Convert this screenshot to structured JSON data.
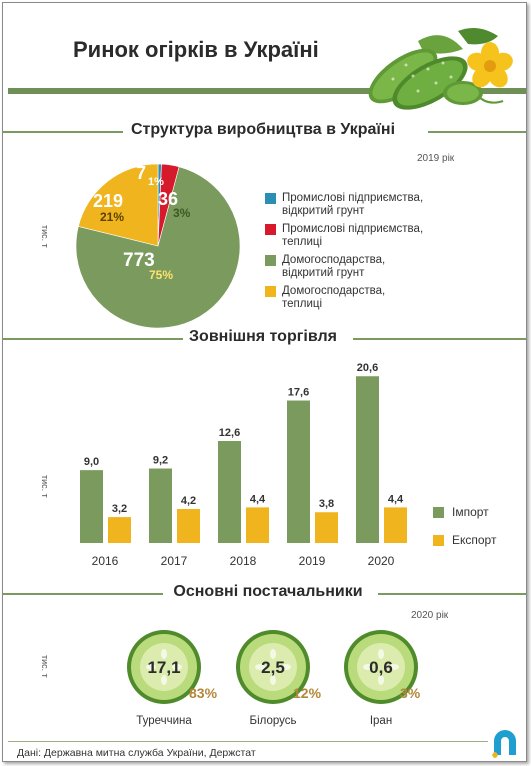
{
  "title": "Ринок огірків в Україні",
  "colors": {
    "green": "#7a9a5e",
    "green_dark": "#5d7d44",
    "yellow": "#f0b41e",
    "red": "#d7192c",
    "teal": "#2a8fb3",
    "title_gray": "#2b2b2b"
  },
  "icons": {
    "hero": "cucumber-with-flower",
    "supplier_disc": "cucumber-slice",
    "logo": "brand-logo"
  },
  "production": {
    "title": "Структура виробництва в Україні",
    "year_note": "2019 рік",
    "unit": "тис. т",
    "chart_data": {
      "type": "pie",
      "slices": [
        {
          "name": "Промислові підприємства, відкритий грунт",
          "value": 7,
          "value_label": "7",
          "percent": 1,
          "percent_label": "1%",
          "color": "#2a8fb3"
        },
        {
          "name": "Промислові підприємства, теплиці",
          "value": 36,
          "value_label": "36",
          "percent": 3,
          "percent_label": "3%",
          "color": "#d7192c"
        },
        {
          "name": "Домогосподарства, відкритий грунт",
          "value": 773,
          "value_label": "773",
          "percent": 75,
          "percent_label": "75%",
          "color": "#7a9a5e"
        },
        {
          "name": "Домогосподарства, теплиці",
          "value": 219,
          "value_label": "219",
          "percent": 21,
          "percent_label": "21%",
          "color": "#f0b41e"
        }
      ]
    },
    "legend": [
      {
        "line1": "Промислові підприємства,",
        "line2": "відкритий грунт",
        "color": "#2a8fb3"
      },
      {
        "line1": "Промислові підприємства,",
        "line2": "теплиці",
        "color": "#d7192c"
      },
      {
        "line1": "Домогосподарства,",
        "line2": "відкритий грунт",
        "color": "#7a9a5e"
      },
      {
        "line1": "Домогосподарства,",
        "line2": "теплиці",
        "color": "#f0b41e"
      }
    ]
  },
  "trade": {
    "title": "Зовнішня торгівля",
    "unit": "тис. т",
    "chart_data": {
      "type": "bar",
      "categories": [
        "2016",
        "2017",
        "2018",
        "2019",
        "2020"
      ],
      "series": [
        {
          "name": "Імпорт",
          "values": [
            9.0,
            9.2,
            12.6,
            17.6,
            20.6
          ],
          "labels": [
            "9,0",
            "9,2",
            "12,6",
            "17,6",
            "20,6"
          ],
          "color": "#7a9a5e"
        },
        {
          "name": "Експорт",
          "values": [
            3.2,
            4.2,
            4.4,
            3.8,
            4.4
          ],
          "labels": [
            "3,2",
            "4,2",
            "4,4",
            "3,8",
            "4,4"
          ],
          "color": "#f0b41e"
        }
      ],
      "ylim": [
        0,
        21
      ]
    }
  },
  "suppliers": {
    "title": "Основні постачальники",
    "year_note": "2020 рік",
    "unit": "тис. т",
    "chart_data": {
      "type": "table",
      "items": [
        {
          "country": "Туреччина",
          "value": 17.1,
          "value_label": "17,1",
          "percent_label": "83%"
        },
        {
          "country": "Білорусь",
          "value": 2.5,
          "value_label": "2,5",
          "percent_label": "12%"
        },
        {
          "country": "Іран",
          "value": 0.6,
          "value_label": "0,6",
          "percent_label": "3%"
        }
      ]
    }
  },
  "footer": "Дані: Державна митна служба України, Держстат"
}
